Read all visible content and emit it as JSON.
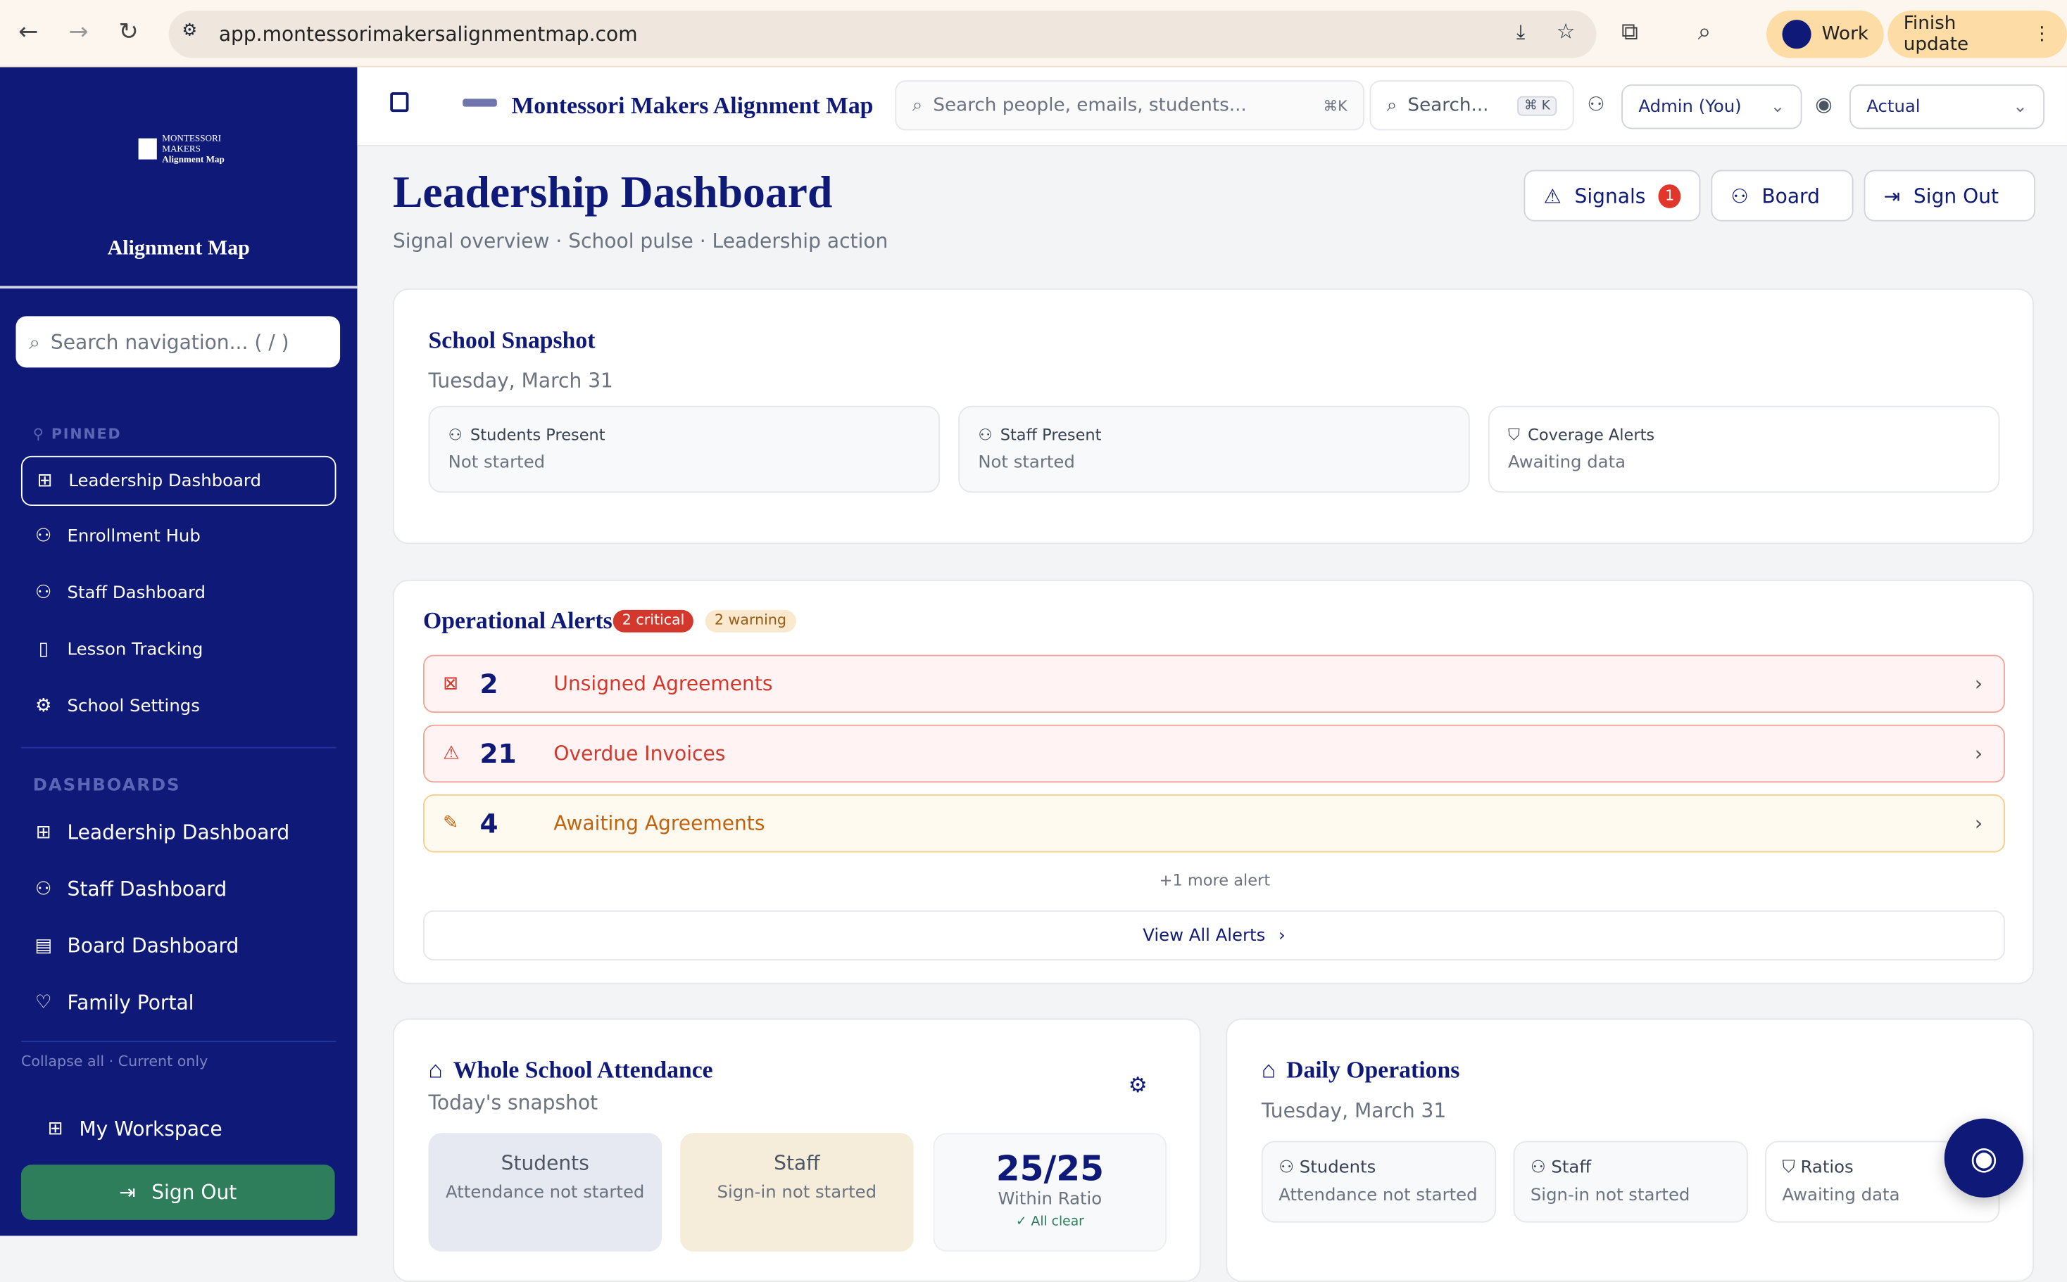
{
  "browser": {
    "url": "app.montessorimakersalignmentmap.com",
    "profile": "Work",
    "update": "Finish update"
  },
  "sidebar": {
    "logo_text": "MONTESSORI MAKERS Alignment Map",
    "title": "Alignment Map",
    "search_placeholder": "Search navigation... ( / )",
    "pinned_label": "PINNED",
    "pinned": [
      {
        "label": "Leadership Dashboard",
        "icon": "grid"
      },
      {
        "label": "Enrollment Hub",
        "icon": "user-plus"
      },
      {
        "label": "Staff Dashboard",
        "icon": "users"
      },
      {
        "label": "Lesson Tracking",
        "icon": "book"
      },
      {
        "label": "School Settings",
        "icon": "gear"
      }
    ],
    "dashboards_label": "DASHBOARDS",
    "dashboards": [
      {
        "label": "Leadership Dashboard",
        "icon": "grid"
      },
      {
        "label": "Staff Dashboard",
        "icon": "users"
      },
      {
        "label": "Board Dashboard",
        "icon": "building"
      },
      {
        "label": "Family Portal",
        "icon": "heart"
      }
    ],
    "collapse_all": "Collapse all",
    "current_only": "Current only",
    "workspace": "My Workspace",
    "sign_out": "Sign Out"
  },
  "topbar": {
    "app_title": "Montessori Makers Alignment Map",
    "search_placeholder": "Search people, emails, students...",
    "search_shortcut": "⌘K",
    "search2": "Search...",
    "search2_shortcut": "⌘ K",
    "role": "Admin (You)",
    "view": "Actual"
  },
  "header": {
    "title": "Leadership Dashboard",
    "subtitle": "Signal overview · School pulse · Leadership action",
    "signals": "Signals",
    "signals_count": "1",
    "board": "Board",
    "sign_out": "Sign Out"
  },
  "snapshot": {
    "title": "School Snapshot",
    "date": "Tuesday, March 31",
    "stats": [
      {
        "label": "Students Present",
        "value": "Not started"
      },
      {
        "label": "Staff Present",
        "value": "Not started"
      },
      {
        "label": "Coverage Alerts",
        "value": "Awaiting data"
      }
    ]
  },
  "alerts": {
    "title": "Operational Alerts",
    "critical": "2 critical",
    "warning": "2 warning",
    "items": [
      {
        "count": "2",
        "label": "Unsigned Agreements",
        "severity": "critical"
      },
      {
        "count": "21",
        "label": "Overdue Invoices",
        "severity": "critical"
      },
      {
        "count": "4",
        "label": "Awaiting Agreements",
        "severity": "warning"
      }
    ],
    "more": "+1 more alert",
    "view_all": "View All Alerts"
  },
  "attendance": {
    "title": "Whole School Attendance",
    "subtitle": "Today's snapshot",
    "students_label": "Students",
    "students_value": "Attendance not started",
    "staff_label": "Staff",
    "staff_value": "Sign-in not started",
    "ratio": "25/25",
    "ratio_label": "Within Ratio",
    "ratio_status": "All clear"
  },
  "operations": {
    "title": "Daily Operations",
    "date": "Tuesday, March 31",
    "stats": [
      {
        "label": "Students",
        "value": "Attendance not started"
      },
      {
        "label": "Staff",
        "value": "Sign-in not started"
      },
      {
        "label": "Ratios",
        "value": "Awaiting data"
      }
    ]
  },
  "colors": {
    "brand": "#0f1a78",
    "critical": "#d4382c",
    "warning": "#c2620c",
    "signout": "#2e7d5b"
  }
}
